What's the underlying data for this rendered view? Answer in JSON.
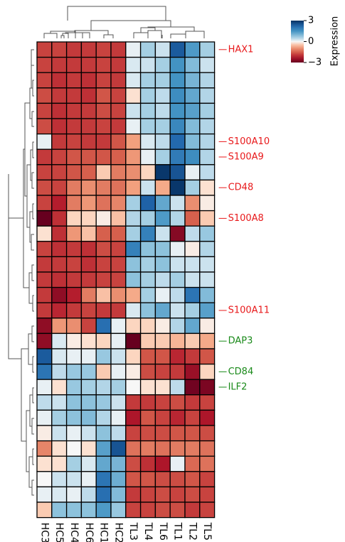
{
  "chart_data": {
    "type": "heatmap",
    "columns": [
      "HC3",
      "HC5",
      "HC4",
      "HC6",
      "HC1",
      "HC2",
      "TL3",
      "TL4",
      "TL6",
      "TL1",
      "TL2",
      "TL5"
    ],
    "row_labels": [
      "HAX1",
      "",
      "",
      "",
      "",
      "",
      "S100A10",
      "S100A9",
      "",
      "CD48",
      "",
      "S100A8",
      "",
      "",
      "",
      "",
      "",
      "S100A11",
      "",
      "DAP3",
      "",
      "CD84",
      "ILF2",
      "",
      "",
      "",
      "",
      "",
      "",
      "",
      ""
    ],
    "row_label_colors": [
      "#e8191b",
      "",
      "",
      "",
      "",
      "",
      "#e8191b",
      "#e8191b",
      "",
      "#e8191b",
      "",
      "#e8191b",
      "",
      "",
      "",
      "",
      "",
      "#e8191b",
      "",
      "#1a8a1a",
      "",
      "#1a8a1a",
      "#1a8a1a",
      "",
      "",
      "",
      "",
      "",
      "",
      "",
      ""
    ],
    "values": [
      [
        -1.8,
        -1.8,
        -1.9,
        -1.9,
        -1.8,
        -1.9,
        0.1,
        0.6,
        0.3,
        2.4,
        1.4,
        0.6
      ],
      [
        -1.8,
        -1.9,
        -1.9,
        -1.9,
        -1.8,
        -1.9,
        0.2,
        0.3,
        0.6,
        1.5,
        0.9,
        0.3
      ],
      [
        -1.8,
        -2.0,
        -1.9,
        -2.0,
        -1.8,
        -1.9,
        0.2,
        0.6,
        0.6,
        1.5,
        1.0,
        0.5
      ],
      [
        -1.7,
        -1.9,
        -1.9,
        -2.0,
        -1.6,
        -1.8,
        -0.2,
        0.6,
        0.4,
        1.6,
        1.2,
        0.5
      ],
      [
        -1.8,
        -2.0,
        -1.9,
        -1.9,
        -1.7,
        -1.8,
        0.3,
        0.6,
        0.4,
        1.5,
        1.3,
        0.6
      ],
      [
        -1.7,
        -2.0,
        -1.9,
        -1.9,
        -1.8,
        -1.9,
        0.1,
        0.6,
        0.6,
        1.7,
        0.9,
        0.5
      ],
      [
        0.1,
        -1.9,
        -1.8,
        -1.9,
        -1.9,
        -1.6,
        -0.8,
        0.2,
        0.4,
        2.2,
        0.9,
        0.5
      ],
      [
        -1.9,
        -1.8,
        -1.6,
        -1.6,
        -1.6,
        -1.5,
        -0.9,
        0.1,
        0.6,
        1.9,
        1.6,
        0.5
      ],
      [
        -1.8,
        -1.8,
        -1.6,
        -1.5,
        -0.4,
        -1.2,
        -1.0,
        -0.3,
        2.9,
        2.5,
        0.1,
        0.4
      ],
      [
        -1.7,
        -1.8,
        -1.2,
        -1.0,
        -1.2,
        -1.3,
        -0.8,
        0.3,
        -0.7,
        2.9,
        0.6,
        -0.2
      ],
      [
        -1.8,
        -2.2,
        -1.2,
        -0.9,
        -1.3,
        -1.1,
        0.6,
        2.3,
        1.2,
        0.3,
        -1.0,
        -0.1
      ],
      [
        -3.0,
        -2.0,
        -0.3,
        -0.3,
        -0.1,
        -0.5,
        0.5,
        0.6,
        1.4,
        0.5,
        -1.5,
        -0.4
      ],
      [
        -0.2,
        -2.0,
        -0.9,
        -0.5,
        -1.5,
        -1.5,
        0.6,
        1.8,
        0.3,
        -2.7,
        0.4,
        0.7
      ],
      [
        -1.8,
        -2.0,
        -1.9,
        -2.0,
        -1.7,
        -1.8,
        1.8,
        0.8,
        0.8,
        0.1,
        -0.1,
        0.5
      ],
      [
        -1.9,
        -1.9,
        -1.8,
        -2.0,
        -1.8,
        -1.8,
        0.8,
        0.6,
        0.8,
        0.3,
        0.3,
        0.3
      ],
      [
        -1.9,
        -2.0,
        -1.9,
        -1.9,
        -1.8,
        -1.8,
        0.8,
        0.6,
        0.4,
        0.6,
        0.3,
        0.3
      ],
      [
        -1.9,
        -2.6,
        -2.2,
        -1.2,
        -0.5,
        -1.0,
        -0.7,
        0.6,
        0.1,
        0.4,
        2.0,
        0.9
      ],
      [
        -1.9,
        -2.1,
        -1.9,
        -1.8,
        -1.9,
        -1.9,
        0.2,
        0.8,
        1.2,
        0.3,
        0.6,
        1.3
      ],
      [
        -2.6,
        -0.9,
        -1.0,
        -1.8,
        2.1,
        0.1,
        -0.3,
        -0.3,
        -0.1,
        0.5,
        1.2,
        -0.1
      ],
      [
        -2.6,
        0.2,
        -0.1,
        -0.2,
        -0.3,
        0.1,
        -3.0,
        -0.4,
        -0.4,
        -0.6,
        -0.4,
        -0.7
      ],
      [
        2.4,
        0.2,
        0.1,
        0.1,
        0.7,
        0.3,
        -0.3,
        -1.6,
        -1.6,
        -2.1,
        -1.9,
        -1.6
      ],
      [
        2.0,
        0.4,
        0.7,
        0.7,
        -0.4,
        0.1,
        -0.1,
        -1.7,
        -1.8,
        -1.9,
        -2.5,
        -0.3
      ],
      [
        0.1,
        -0.2,
        0.7,
        0.6,
        0.5,
        0.6,
        0.0,
        -0.2,
        -0.2,
        0.4,
        -2.9,
        -2.8
      ],
      [
        0.4,
        0.3,
        0.8,
        0.8,
        0.7,
        0.3,
        -1.9,
        -1.9,
        -1.8,
        -1.7,
        -1.9,
        -1.8
      ],
      [
        0.1,
        0.6,
        0.8,
        0.9,
        0.5,
        0.1,
        -2.3,
        -1.6,
        -1.8,
        -2.1,
        -1.8,
        -2.3
      ],
      [
        -0.1,
        0.3,
        0.1,
        0.3,
        0.8,
        0.4,
        -1.8,
        -1.7,
        -1.7,
        -1.6,
        -1.6,
        -1.7
      ],
      [
        -1.1,
        -0.2,
        0.0,
        -0.2,
        1.3,
        2.5,
        -1.3,
        -1.2,
        -1.3,
        -1.2,
        -1.2,
        -1.3
      ],
      [
        -0.2,
        -0.2,
        0.6,
        0.2,
        1.2,
        1.0,
        -1.7,
        -2.0,
        -2.3,
        0.1,
        -1.4,
        -1.3
      ],
      [
        0.0,
        0.3,
        0.3,
        0.1,
        2.0,
        1.1,
        -1.6,
        -1.6,
        -1.7,
        -1.7,
        -1.6,
        -1.8
      ],
      [
        0.1,
        0.2,
        0.1,
        0.4,
        2.1,
        0.9,
        -1.9,
        -1.8,
        -1.7,
        -1.8,
        -1.7,
        -1.8
      ],
      [
        -0.4,
        0.8,
        0.8,
        0.8,
        1.4,
        0.7,
        -1.8,
        -1.8,
        -1.7,
        -1.7,
        -1.9,
        -1.8
      ]
    ],
    "colorbar": {
      "label": "Expression",
      "min": -3,
      "max": 3,
      "ticks": [
        "3",
        "0",
        "−3"
      ],
      "colormap": "RdBu"
    },
    "column_dendrogram": true,
    "row_dendrogram": true
  }
}
